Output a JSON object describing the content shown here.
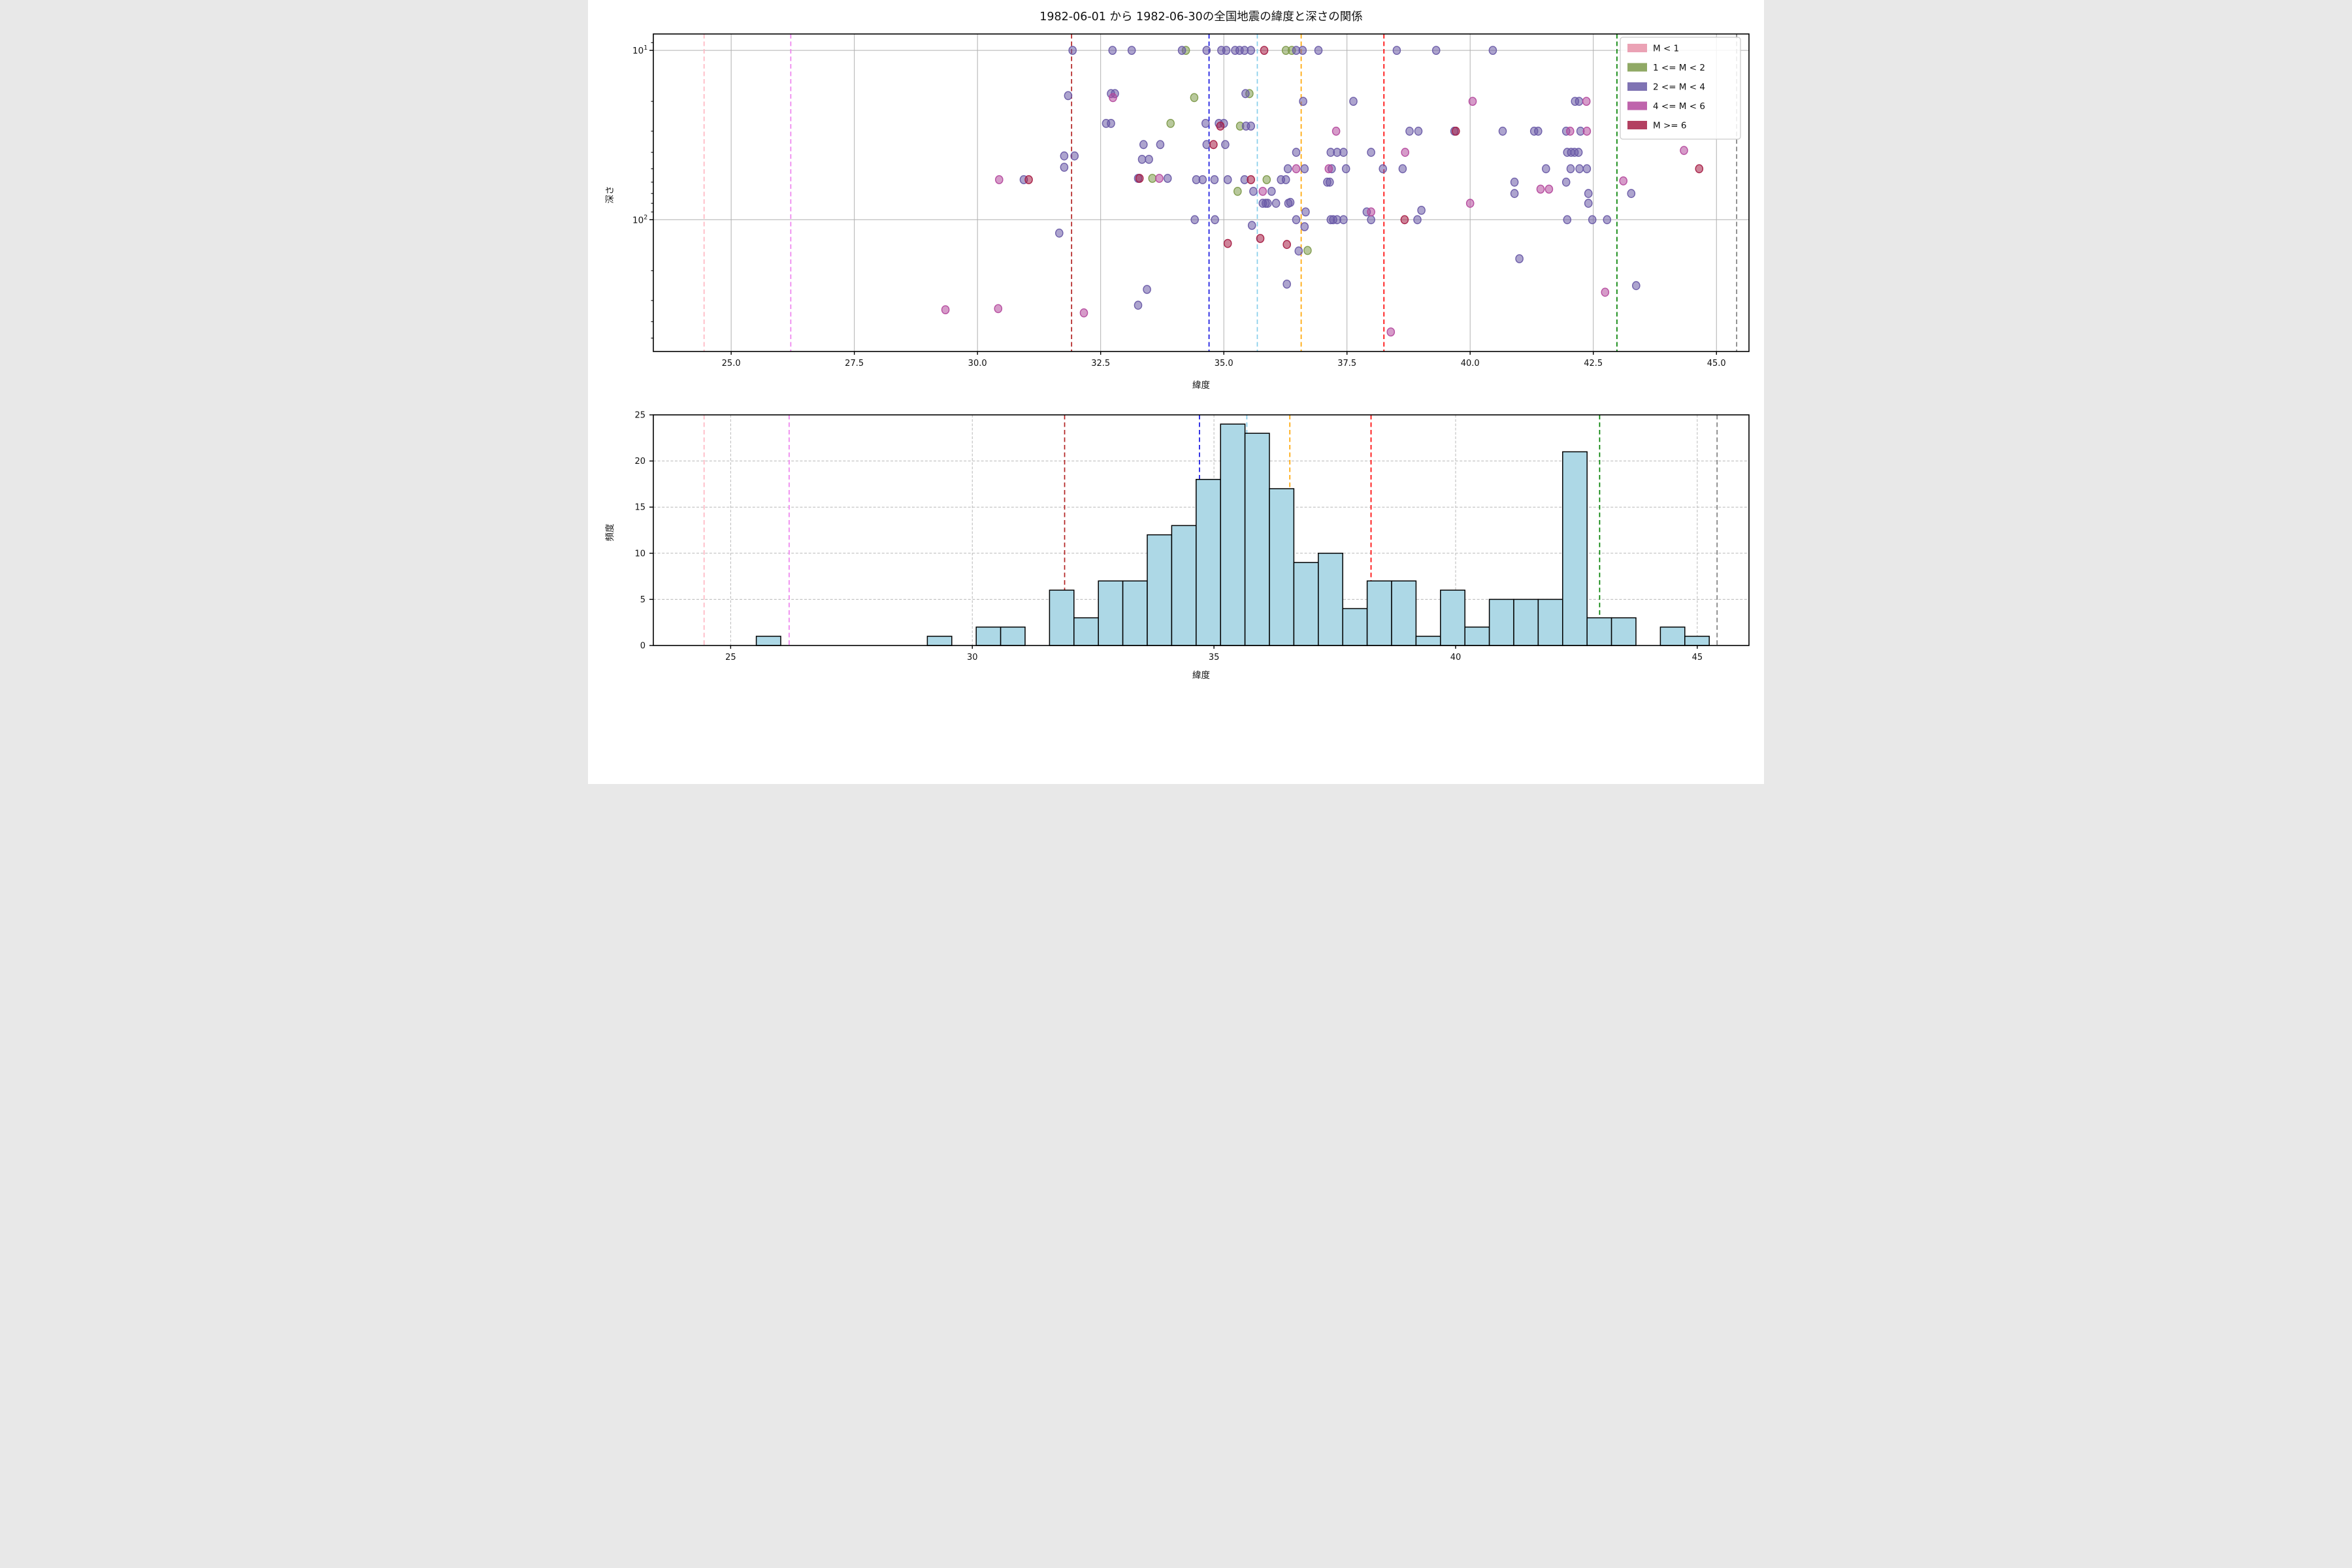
{
  "figure": {
    "title": "1982-06-01 から 1982-06-30の全国地震の緯度と深さの関係"
  },
  "legend": {
    "entries": [
      {
        "label": "M < 1",
        "color": "#e892a8"
      },
      {
        "label": "1 <= M < 2",
        "color": "#7d9a4a"
      },
      {
        "label": "2 <= M < 4",
        "color": "#695aa6"
      },
      {
        "label": "4 <= M < 6",
        "color": "#b4499d"
      },
      {
        "label": "M >= 6",
        "color": "#a61e45"
      }
    ]
  },
  "reference_lines": [
    {
      "lat": 24.45,
      "color": "#ffb6c1"
    },
    {
      "lat": 26.21,
      "color": "#ee82ee"
    },
    {
      "lat": 31.91,
      "color": "#b22222"
    },
    {
      "lat": 34.7,
      "color": "#1414e0"
    },
    {
      "lat": 35.68,
      "color": "#87ceeb"
    },
    {
      "lat": 36.57,
      "color": "#ffa500"
    },
    {
      "lat": 38.25,
      "color": "#ff0000"
    },
    {
      "lat": 42.98,
      "color": "#008000"
    },
    {
      "lat": 45.41,
      "color": "#808080"
    }
  ],
  "chart_data": [
    {
      "type": "scatter",
      "title": "1982-06-01 から 1982-06-30の全国地震の緯度と深さの関係",
      "xlabel": "緯度",
      "ylabel": "深さ",
      "xlim": [
        23.42,
        45.66
      ],
      "ylim_depth": [
        8,
        600
      ],
      "y_scale": "log-inverted",
      "xticks": [
        {
          "v": 25,
          "label": "25.0"
        },
        {
          "v": 27.5,
          "label": "27.5"
        },
        {
          "v": 30,
          "label": "30.0"
        },
        {
          "v": 32.5,
          "label": "32.5"
        },
        {
          "v": 35,
          "label": "35.0"
        },
        {
          "v": 37.5,
          "label": "37.5"
        },
        {
          "v": 40,
          "label": "40.0"
        },
        {
          "v": 42.5,
          "label": "42.5"
        },
        {
          "v": 45,
          "label": "45.0"
        }
      ],
      "yticks_major": [
        {
          "v": 10,
          "base": "10",
          "exp": "1"
        },
        {
          "v": 100,
          "base": "10",
          "exp": "2"
        }
      ],
      "yticks_minor": [
        9,
        20,
        30,
        40,
        50,
        60,
        70,
        80,
        90,
        200,
        300,
        400,
        500
      ],
      "grid": "solid",
      "legend_position": "upper right",
      "classes": [
        "M < 1",
        "1 <= M < 2",
        "2 <= M < 4",
        "4 <= M < 6",
        "M >= 6"
      ],
      "points": [
        [
          31.93,
          10,
          2
        ],
        [
          32.74,
          10,
          2
        ],
        [
          33.13,
          10,
          2
        ],
        [
          34.15,
          10,
          2
        ],
        [
          34.23,
          10,
          1
        ],
        [
          34.65,
          10,
          2
        ],
        [
          34.95,
          10,
          2
        ],
        [
          35.05,
          10,
          2
        ],
        [
          35.23,
          10,
          2
        ],
        [
          35.32,
          10,
          2
        ],
        [
          35.42,
          10,
          2
        ],
        [
          35.55,
          10,
          2
        ],
        [
          35.82,
          10,
          4
        ],
        [
          36.26,
          10,
          1
        ],
        [
          36.38,
          10,
          1
        ],
        [
          36.47,
          10,
          2
        ],
        [
          36.6,
          10,
          2
        ],
        [
          36.92,
          10,
          2
        ],
        [
          38.51,
          10,
          2
        ],
        [
          39.31,
          10,
          2
        ],
        [
          40.46,
          10,
          2
        ],
        [
          31.84,
          18.5,
          2
        ],
        [
          32.71,
          18,
          2
        ],
        [
          32.79,
          18,
          2
        ],
        [
          32.75,
          19,
          3
        ],
        [
          34.4,
          19,
          1
        ],
        [
          35.44,
          18,
          2
        ],
        [
          35.52,
          18,
          1
        ],
        [
          36.61,
          20,
          2
        ],
        [
          37.63,
          20,
          2
        ],
        [
          40.05,
          20,
          3
        ],
        [
          42.13,
          20,
          2
        ],
        [
          42.21,
          20,
          2
        ],
        [
          42.36,
          20,
          3
        ],
        [
          32.61,
          27,
          2
        ],
        [
          32.71,
          27,
          2
        ],
        [
          33.92,
          27,
          1
        ],
        [
          34.63,
          27,
          2
        ],
        [
          34.9,
          27,
          2
        ],
        [
          34.93,
          28,
          4
        ],
        [
          35.0,
          27,
          2
        ],
        [
          35.33,
          28,
          1
        ],
        [
          35.45,
          28,
          2
        ],
        [
          35.55,
          28,
          2
        ],
        [
          37.28,
          30,
          3
        ],
        [
          38.77,
          30,
          2
        ],
        [
          38.95,
          30,
          2
        ],
        [
          39.68,
          30,
          2
        ],
        [
          39.71,
          30,
          4
        ],
        [
          40.66,
          30,
          2
        ],
        [
          41.3,
          30,
          2
        ],
        [
          41.38,
          30,
          2
        ],
        [
          41.95,
          30,
          2
        ],
        [
          42.03,
          30,
          3
        ],
        [
          42.24,
          30,
          2
        ],
        [
          42.37,
          30,
          3
        ],
        [
          33.37,
          36,
          2
        ],
        [
          33.71,
          36,
          2
        ],
        [
          34.65,
          36,
          2
        ],
        [
          34.79,
          36,
          4
        ],
        [
          35.03,
          36,
          2
        ],
        [
          31.76,
          42,
          2
        ],
        [
          31.97,
          42,
          2
        ],
        [
          36.47,
          40,
          2
        ],
        [
          37.17,
          40,
          2
        ],
        [
          37.3,
          40,
          2
        ],
        [
          37.43,
          40,
          2
        ],
        [
          37.99,
          40,
          2
        ],
        [
          38.68,
          40,
          3
        ],
        [
          41.97,
          40,
          2
        ],
        [
          42.05,
          40,
          2
        ],
        [
          42.12,
          40,
          2
        ],
        [
          42.2,
          40,
          2
        ],
        [
          44.34,
          39,
          3
        ],
        [
          33.34,
          44,
          2
        ],
        [
          33.48,
          44,
          2
        ],
        [
          31.76,
          49,
          2
        ],
        [
          36.3,
          50,
          2
        ],
        [
          36.47,
          50,
          3
        ],
        [
          36.64,
          50,
          2
        ],
        [
          37.13,
          50,
          3
        ],
        [
          37.19,
          50,
          2
        ],
        [
          37.48,
          50,
          2
        ],
        [
          38.23,
          50,
          2
        ],
        [
          38.63,
          50,
          2
        ],
        [
          41.54,
          50,
          2
        ],
        [
          42.04,
          50,
          2
        ],
        [
          42.22,
          50,
          2
        ],
        [
          42.37,
          50,
          2
        ],
        [
          44.65,
          50,
          4
        ],
        [
          30.44,
          58,
          3
        ],
        [
          30.94,
          58,
          2
        ],
        [
          31.04,
          58,
          4
        ],
        [
          33.26,
          57,
          2
        ],
        [
          33.29,
          57,
          4
        ],
        [
          33.55,
          57,
          1
        ],
        [
          33.69,
          57,
          3
        ],
        [
          33.86,
          57,
          2
        ],
        [
          34.44,
          58,
          2
        ],
        [
          34.57,
          58,
          2
        ],
        [
          34.81,
          58,
          2
        ],
        [
          35.08,
          58,
          2
        ],
        [
          35.42,
          58,
          2
        ],
        [
          35.55,
          58,
          4
        ],
        [
          35.87,
          58,
          1
        ],
        [
          36.16,
          58,
          2
        ],
        [
          36.26,
          58,
          2
        ],
        [
          37.1,
          60,
          2
        ],
        [
          37.15,
          60,
          2
        ],
        [
          40.9,
          60,
          2
        ],
        [
          41.95,
          60,
          2
        ],
        [
          43.11,
          59,
          3
        ],
        [
          35.28,
          68,
          1
        ],
        [
          35.6,
          68,
          2
        ],
        [
          35.79,
          68,
          3
        ],
        [
          35.97,
          68,
          2
        ],
        [
          41.43,
          66,
          3
        ],
        [
          41.6,
          66,
          3
        ],
        [
          40.9,
          70,
          2
        ],
        [
          42.4,
          70,
          2
        ],
        [
          43.27,
          70,
          2
        ],
        [
          35.79,
          80,
          2
        ],
        [
          35.85,
          80,
          2
        ],
        [
          35.89,
          80,
          2
        ],
        [
          36.06,
          80,
          2
        ],
        [
          36.31,
          80,
          2
        ],
        [
          36.35,
          79,
          2
        ],
        [
          40.0,
          80,
          3
        ],
        [
          42.4,
          80,
          2
        ],
        [
          36.66,
          90,
          2
        ],
        [
          37.9,
          90,
          2
        ],
        [
          37.99,
          90,
          3
        ],
        [
          39.01,
          88,
          2
        ],
        [
          34.41,
          100,
          2
        ],
        [
          34.82,
          100,
          2
        ],
        [
          36.47,
          100,
          2
        ],
        [
          37.17,
          100,
          2
        ],
        [
          37.22,
          100,
          2
        ],
        [
          37.3,
          100,
          2
        ],
        [
          37.43,
          100,
          2
        ],
        [
          37.99,
          100,
          2
        ],
        [
          38.67,
          100,
          4
        ],
        [
          38.93,
          100,
          2
        ],
        [
          41.97,
          100,
          2
        ],
        [
          42.48,
          100,
          2
        ],
        [
          42.78,
          100,
          2
        ],
        [
          35.57,
          108,
          2
        ],
        [
          36.64,
          110,
          2
        ],
        [
          31.66,
          120,
          2
        ],
        [
          35.74,
          129,
          4
        ],
        [
          35.08,
          138,
          4
        ],
        [
          36.28,
          140,
          4
        ],
        [
          36.52,
          153,
          2
        ],
        [
          36.7,
          152,
          1
        ],
        [
          41.0,
          170,
          2
        ],
        [
          36.28,
          240,
          2
        ],
        [
          43.37,
          245,
          2
        ],
        [
          42.74,
          268,
          3
        ],
        [
          33.44,
          258,
          2
        ],
        [
          33.26,
          320,
          2
        ],
        [
          32.16,
          355,
          3
        ],
        [
          29.35,
          340,
          3
        ],
        [
          30.42,
          335,
          3
        ],
        [
          38.39,
          460,
          3
        ]
      ]
    },
    {
      "type": "bar",
      "xlabel": "緯度",
      "ylabel": "頻度",
      "xlim": [
        23.4,
        46.07
      ],
      "ylim": [
        0,
        25
      ],
      "xticks": [
        {
          "v": 25,
          "label": "25"
        },
        {
          "v": 30,
          "label": "30"
        },
        {
          "v": 35,
          "label": "35"
        },
        {
          "v": 40,
          "label": "40"
        },
        {
          "v": 45,
          "label": "45"
        }
      ],
      "yticks": [
        {
          "v": 0,
          "label": "0"
        },
        {
          "v": 5,
          "label": "5"
        },
        {
          "v": 10,
          "label": "10"
        },
        {
          "v": 15,
          "label": "15"
        },
        {
          "v": 20,
          "label": "20"
        },
        {
          "v": 25,
          "label": "25"
        }
      ],
      "grid": "dashed",
      "bar_color": "#add8e6",
      "bar_edge_color": "#000000",
      "bin_start": 25.53,
      "bin_width": 0.5056,
      "values": [
        1,
        0,
        0,
        0,
        0,
        0,
        0,
        1,
        0,
        2,
        2,
        0,
        6,
        3,
        7,
        7,
        12,
        13,
        18,
        24,
        23,
        17,
        9,
        10,
        4,
        7,
        7,
        1,
        6,
        2,
        5,
        5,
        5,
        21,
        3,
        3,
        0,
        2,
        1
      ]
    }
  ]
}
